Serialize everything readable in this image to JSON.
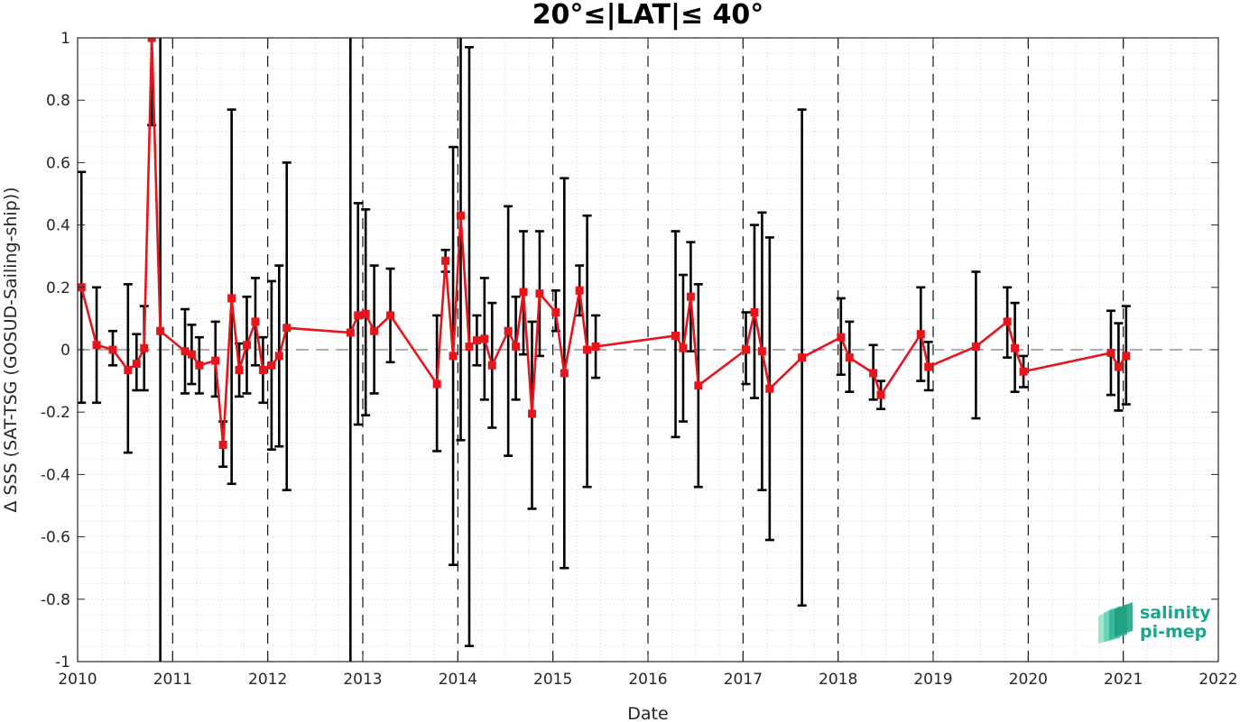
{
  "chart_data": {
    "type": "line",
    "title": "20°≤|LAT|≤ 40°",
    "xlabel": "Date",
    "ylabel": "Δ SSS (SAT-TSG (GOSUD-Sailing-ship))",
    "xlim": [
      2010,
      2022
    ],
    "ylim": [
      -1,
      1
    ],
    "x_ticks": [
      "2010",
      "2011",
      "2012",
      "2013",
      "2014",
      "2015",
      "2016",
      "2017",
      "2018",
      "2019",
      "2020",
      "2021",
      "2022"
    ],
    "y_ticks": [
      "1",
      "0.8",
      "0.6",
      "0.4",
      "0.2",
      "0",
      "-0.2",
      "-0.4",
      "-0.6",
      "-0.8",
      "-1"
    ],
    "grid": true,
    "grid_style": "dotted minor grid",
    "reference_line": 0,
    "year_separators": "dashed vertical lines near each year start",
    "series": [
      {
        "color": "#e8141b",
        "marker": "square",
        "points": [
          {
            "x": 2010.04,
            "y": 0.2,
            "err_lo": -0.17,
            "err_hi": 0.57
          },
          {
            "x": 2010.2,
            "y": 0.015,
            "err_lo": -0.17,
            "err_hi": 0.2
          },
          {
            "x": 2010.37,
            "y": 0.0,
            "err_lo": -0.05,
            "err_hi": 0.06
          },
          {
            "x": 2010.53,
            "y": -0.065,
            "err_lo": -0.33,
            "err_hi": 0.21
          },
          {
            "x": 2010.62,
            "y": -0.045,
            "err_lo": -0.13,
            "err_hi": 0.05
          },
          {
            "x": 2010.7,
            "y": 0.005,
            "err_lo": -0.13,
            "err_hi": 0.14
          },
          {
            "x": 2010.78,
            "y": 1.0,
            "err_lo": 0.72,
            "err_hi": 1.3
          },
          {
            "x": 2010.87,
            "y": 0.06,
            "err_lo": -1.3,
            "err_hi": 1.4
          },
          {
            "x": 2011.13,
            "y": -0.005,
            "err_lo": -0.14,
            "err_hi": 0.13
          },
          {
            "x": 2011.2,
            "y": -0.015,
            "err_lo": -0.11,
            "err_hi": 0.08
          },
          {
            "x": 2011.28,
            "y": -0.05,
            "err_lo": -0.14,
            "err_hi": 0.04
          },
          {
            "x": 2011.45,
            "y": -0.035,
            "err_lo": -0.15,
            "err_hi": 0.09
          },
          {
            "x": 2011.53,
            "y": -0.305,
            "err_lo": -0.375,
            "err_hi": -0.23
          },
          {
            "x": 2011.62,
            "y": 0.165,
            "err_lo": -0.43,
            "err_hi": 0.77
          },
          {
            "x": 2011.7,
            "y": -0.065,
            "err_lo": -0.15,
            "err_hi": 0.02
          },
          {
            "x": 2011.78,
            "y": 0.015,
            "err_lo": -0.14,
            "err_hi": 0.17
          },
          {
            "x": 2011.87,
            "y": 0.09,
            "err_lo": -0.05,
            "err_hi": 0.23
          },
          {
            "x": 2011.95,
            "y": -0.065,
            "err_lo": -0.17,
            "err_hi": 0.04
          },
          {
            "x": 2012.04,
            "y": -0.05,
            "err_lo": -0.32,
            "err_hi": 0.22
          },
          {
            "x": 2012.12,
            "y": -0.02,
            "err_lo": -0.31,
            "err_hi": 0.27
          },
          {
            "x": 2012.2,
            "y": 0.07,
            "err_lo": -0.45,
            "err_hi": 0.6
          },
          {
            "x": 2012.87,
            "y": 0.055,
            "err_lo": -1.3,
            "err_hi": 1.4
          },
          {
            "x": 2012.95,
            "y": 0.11,
            "err_lo": -0.24,
            "err_hi": 0.47
          },
          {
            "x": 2013.03,
            "y": 0.115,
            "err_lo": -0.21,
            "err_hi": 0.45
          },
          {
            "x": 2013.12,
            "y": 0.06,
            "err_lo": -0.14,
            "err_hi": 0.27
          },
          {
            "x": 2013.29,
            "y": 0.11,
            "err_lo": -0.04,
            "err_hi": 0.26
          },
          {
            "x": 2013.78,
            "y": -0.11,
            "err_lo": -0.325,
            "err_hi": 0.11
          },
          {
            "x": 2013.87,
            "y": 0.285,
            "err_lo": 0.25,
            "err_hi": 0.32
          },
          {
            "x": 2013.95,
            "y": -0.02,
            "err_lo": -0.69,
            "err_hi": 0.65
          },
          {
            "x": 2014.03,
            "y": 0.43,
            "err_lo": -0.29,
            "err_hi": 1.4
          },
          {
            "x": 2014.12,
            "y": 0.01,
            "err_lo": -0.95,
            "err_hi": 0.97
          },
          {
            "x": 2014.2,
            "y": 0.03,
            "err_lo": -0.05,
            "err_hi": 0.11
          },
          {
            "x": 2014.28,
            "y": 0.035,
            "err_lo": -0.16,
            "err_hi": 0.23
          },
          {
            "x": 2014.36,
            "y": -0.05,
            "err_lo": -0.25,
            "err_hi": 0.15
          },
          {
            "x": 2014.53,
            "y": 0.06,
            "err_lo": -0.34,
            "err_hi": 0.46
          },
          {
            "x": 2014.61,
            "y": 0.01,
            "err_lo": -0.16,
            "err_hi": 0.17
          },
          {
            "x": 2014.69,
            "y": 0.185,
            "err_lo": -0.015,
            "err_hi": 0.38
          },
          {
            "x": 2014.78,
            "y": -0.205,
            "err_lo": -0.51,
            "err_hi": 0.09
          },
          {
            "x": 2014.86,
            "y": 0.18,
            "err_lo": -0.02,
            "err_hi": 0.38
          },
          {
            "x": 2015.03,
            "y": 0.12,
            "err_lo": 0.06,
            "err_hi": 0.19
          },
          {
            "x": 2015.12,
            "y": -0.075,
            "err_lo": -0.7,
            "err_hi": 0.55
          },
          {
            "x": 2015.28,
            "y": 0.19,
            "err_lo": 0.11,
            "err_hi": 0.27
          },
          {
            "x": 2015.36,
            "y": 0.0,
            "err_lo": -0.44,
            "err_hi": 0.43
          },
          {
            "x": 2015.45,
            "y": 0.01,
            "err_lo": -0.09,
            "err_hi": 0.11
          },
          {
            "x": 2016.29,
            "y": 0.045,
            "err_lo": -0.28,
            "err_hi": 0.38
          },
          {
            "x": 2016.37,
            "y": 0.005,
            "err_lo": -0.23,
            "err_hi": 0.24
          },
          {
            "x": 2016.45,
            "y": 0.17,
            "err_lo": -0.005,
            "err_hi": 0.345
          },
          {
            "x": 2016.53,
            "y": -0.115,
            "err_lo": -0.44,
            "err_hi": 0.21
          },
          {
            "x": 2017.03,
            "y": 0.0,
            "err_lo": -0.11,
            "err_hi": 0.12
          },
          {
            "x": 2017.12,
            "y": 0.12,
            "err_lo": -0.155,
            "err_hi": 0.4
          },
          {
            "x": 2017.2,
            "y": -0.005,
            "err_lo": -0.45,
            "err_hi": 0.44
          },
          {
            "x": 2017.28,
            "y": -0.125,
            "err_lo": -0.61,
            "err_hi": 0.36
          },
          {
            "x": 2017.62,
            "y": -0.025,
            "err_lo": -0.82,
            "err_hi": 0.77
          },
          {
            "x": 2018.03,
            "y": 0.04,
            "err_lo": -0.08,
            "err_hi": 0.165
          },
          {
            "x": 2018.12,
            "y": -0.025,
            "err_lo": -0.135,
            "err_hi": 0.09
          },
          {
            "x": 2018.37,
            "y": -0.075,
            "err_lo": -0.16,
            "err_hi": 0.015
          },
          {
            "x": 2018.45,
            "y": -0.145,
            "err_lo": -0.19,
            "err_hi": -0.1
          },
          {
            "x": 2018.87,
            "y": 0.05,
            "err_lo": -0.1,
            "err_hi": 0.2
          },
          {
            "x": 2018.95,
            "y": -0.055,
            "err_lo": -0.13,
            "err_hi": 0.025
          },
          {
            "x": 2019.45,
            "y": 0.01,
            "err_lo": -0.22,
            "err_hi": 0.25
          },
          {
            "x": 2019.78,
            "y": 0.09,
            "err_lo": -0.025,
            "err_hi": 0.2
          },
          {
            "x": 2019.86,
            "y": 0.005,
            "err_lo": -0.135,
            "err_hi": 0.15
          },
          {
            "x": 2019.95,
            "y": -0.07,
            "err_lo": -0.12,
            "err_hi": -0.02
          },
          {
            "x": 2020.87,
            "y": -0.01,
            "err_lo": -0.145,
            "err_hi": 0.125
          },
          {
            "x": 2020.95,
            "y": -0.055,
            "err_lo": -0.195,
            "err_hi": 0.085
          },
          {
            "x": 2021.03,
            "y": -0.02,
            "err_lo": -0.175,
            "err_hi": 0.14
          }
        ]
      }
    ],
    "dashed_vlines_x": [
      2011.0,
      2012.0,
      2013.0,
      2014.0,
      2015.0,
      2016.0,
      2017.0,
      2018.0,
      2019.0,
      2020.0,
      2021.0
    ]
  },
  "logo": {
    "line1": "salinity",
    "line2": "pi-mep",
    "color_text": "#1aa58c",
    "color_mark": "#3cc9a5"
  },
  "colors": {
    "series": "#e8141b",
    "errorbar": "#000000",
    "axis": "#262626",
    "grid": "#c8c8c8",
    "zero_line": "#808080"
  }
}
